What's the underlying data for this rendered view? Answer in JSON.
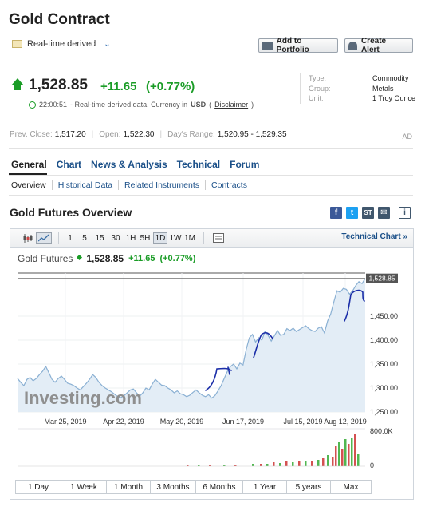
{
  "header": {
    "title": "Gold Contract",
    "realtime_label": "Real-time derived",
    "add_portfolio": "Add to Portfolio",
    "create_alert": "Create Alert"
  },
  "quote": {
    "price": "1,528.85",
    "change": "+11.65",
    "change_pct": "(+0.77%)",
    "time": "22:00:51",
    "time_desc": "- Real-time derived data. Currency in",
    "currency": "USD",
    "disclaimer": "Disclaimer"
  },
  "meta": {
    "type_label": "Type:",
    "type_value": "Commodity",
    "group_label": "Group:",
    "group_value": "Metals",
    "unit_label": "Unit:",
    "unit_value": "1 Troy Ounce"
  },
  "stats": {
    "prev_close_label": "Prev. Close:",
    "prev_close": "1,517.20",
    "open_label": "Open:",
    "open": "1,522.30",
    "range_label": "Day's Range:",
    "range": "1,520.95 - 1,529.35",
    "ad": "AD"
  },
  "tabs": [
    "General",
    "Chart",
    "News & Analysis",
    "Technical",
    "Forum"
  ],
  "subtabs": [
    "Overview",
    "Historical Data",
    "Related Instruments",
    "Contracts"
  ],
  "section_title": "Gold Futures Overview",
  "share_icons": [
    "facebook-icon",
    "twitter-icon",
    "stocktwits-icon",
    "email-icon",
    "info-icon"
  ],
  "toolbar": {
    "intervals": [
      "1",
      "5",
      "15",
      "30",
      "1H",
      "5H",
      "1D",
      "1W",
      "1M"
    ],
    "selected": "1D",
    "technical_chart": "Technical Chart »"
  },
  "chart_info": {
    "name": "Gold Futures",
    "price": "1,528.85",
    "change": "+11.65",
    "change_pct": "(+0.77%)"
  },
  "chart_data": {
    "type": "area",
    "x_tick_labels": [
      "Mar 25, 2019",
      "Apr 22, 2019",
      "May 20, 2019",
      "Jun 17, 2019",
      "Jul 15, 2019",
      "Aug 12, 2019"
    ],
    "y_tick_labels": [
      "1,450.00",
      "1,400.00",
      "1,350.00",
      "1,300.00",
      "1,250.00"
    ],
    "ylim": [
      1250,
      1540
    ],
    "last_label": "1,528.85",
    "values": [
      1320,
      1312,
      1305,
      1318,
      1322,
      1315,
      1320,
      1328,
      1335,
      1345,
      1332,
      1318,
      1312,
      1320,
      1325,
      1318,
      1310,
      1308,
      1305,
      1300,
      1296,
      1303,
      1310,
      1318,
      1328,
      1322,
      1312,
      1305,
      1300,
      1296,
      1292,
      1287,
      1282,
      1280,
      1284,
      1290,
      1296,
      1298,
      1290,
      1283,
      1290,
      1300,
      1296,
      1308,
      1318,
      1312,
      1306,
      1305,
      1300,
      1296,
      1290,
      1294,
      1288,
      1286,
      1282,
      1285,
      1291,
      1296,
      1290,
      1285,
      1282,
      1286,
      1279,
      1284,
      1294,
      1305,
      1320,
      1335,
      1345,
      1350,
      1340,
      1352,
      1348,
      1380,
      1405,
      1412,
      1396,
      1405,
      1400,
      1418,
      1410,
      1398,
      1409,
      1420,
      1410,
      1412,
      1424,
      1420,
      1425,
      1418,
      1422,
      1426,
      1430,
      1424,
      1420,
      1418,
      1425,
      1428,
      1415,
      1440,
      1455,
      1480,
      1503,
      1500,
      1508,
      1506,
      1496,
      1503,
      1514,
      1522,
      1518,
      1528.85
    ],
    "volume_label": "800.0K",
    "volume_zero": "0",
    "watermark": "Investing.com"
  },
  "ranges": [
    "1 Day",
    "1 Week",
    "1 Month",
    "3 Months",
    "6 Months",
    "1 Year",
    "5 years",
    "Max"
  ]
}
